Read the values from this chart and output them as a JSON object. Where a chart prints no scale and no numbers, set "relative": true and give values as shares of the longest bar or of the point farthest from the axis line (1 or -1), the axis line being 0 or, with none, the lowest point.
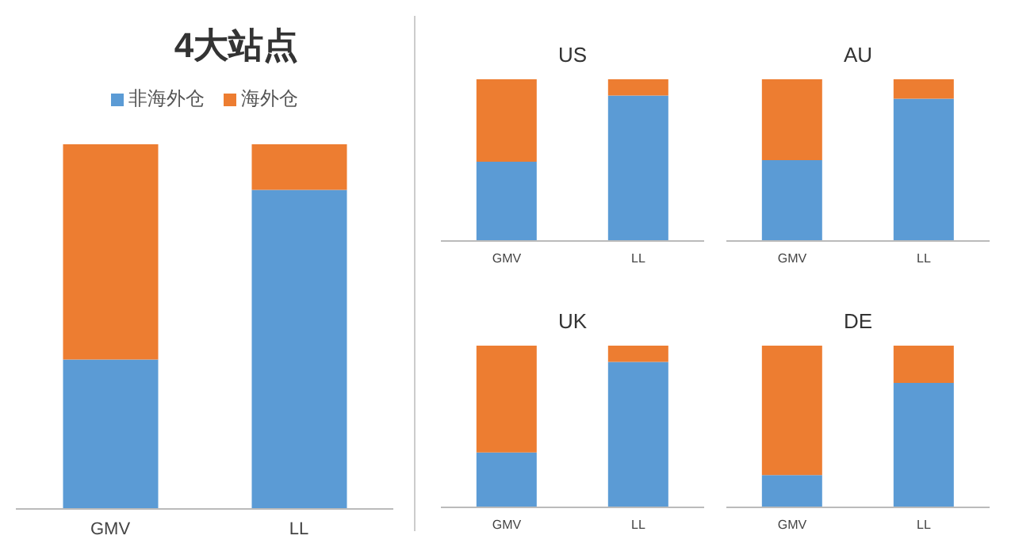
{
  "chart_data": [
    {
      "type": "bar",
      "title": "4大站点",
      "categories": [
        "GMV",
        "LL"
      ],
      "stacked": true,
      "relative": true,
      "legend": "top",
      "grid": false,
      "series": [
        {
          "name": "非海外仓",
          "color": "#5b9bd5",
          "values": [
            0.41,
            0.875
          ]
        },
        {
          "name": "海外仓",
          "color": "#ed7d31",
          "values": [
            0.59,
            0.125
          ]
        }
      ]
    },
    {
      "type": "bar",
      "title": "US",
      "categories": [
        "GMV",
        "LL"
      ],
      "stacked": true,
      "relative": true,
      "grid": false,
      "series": [
        {
          "color": "#5b9bd5",
          "values": [
            0.49,
            0.9
          ]
        },
        {
          "color": "#ed7d31",
          "values": [
            0.51,
            0.1
          ]
        }
      ]
    },
    {
      "type": "bar",
      "title": "AU",
      "categories": [
        "GMV",
        "LL"
      ],
      "stacked": true,
      "relative": true,
      "grid": false,
      "series": [
        {
          "color": "#5b9bd5",
          "values": [
            0.5,
            0.88
          ]
        },
        {
          "color": "#ed7d31",
          "values": [
            0.5,
            0.12
          ]
        }
      ]
    },
    {
      "type": "bar",
      "title": "UK",
      "categories": [
        "GMV",
        "LL"
      ],
      "stacked": true,
      "relative": true,
      "grid": false,
      "series": [
        {
          "color": "#5b9bd5",
          "values": [
            0.34,
            0.9
          ]
        },
        {
          "color": "#ed7d31",
          "values": [
            0.66,
            0.1
          ]
        }
      ]
    },
    {
      "type": "bar",
      "title": "DE",
      "categories": [
        "GMV",
        "LL"
      ],
      "stacked": true,
      "relative": true,
      "grid": false,
      "series": [
        {
          "color": "#5b9bd5",
          "values": [
            0.2,
            0.77
          ]
        },
        {
          "color": "#ed7d31",
          "values": [
            0.8,
            0.23
          ]
        }
      ]
    }
  ]
}
